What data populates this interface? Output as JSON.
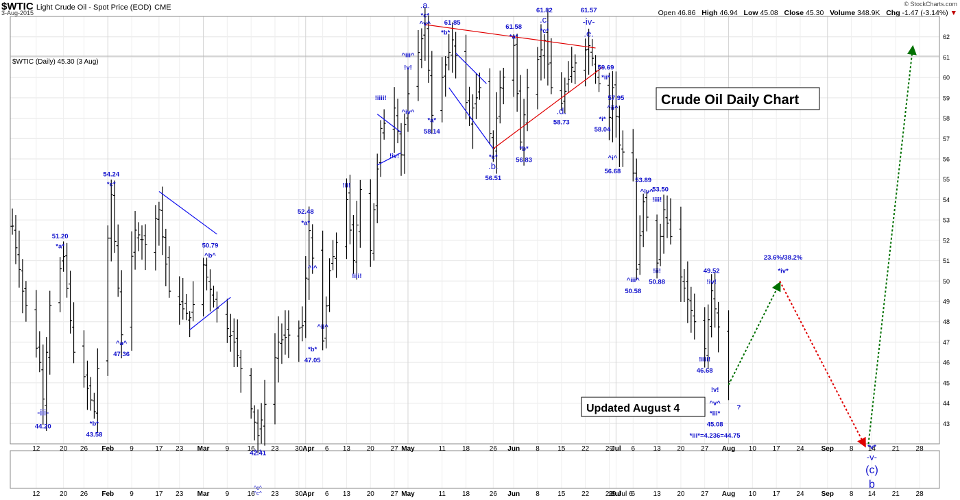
{
  "header": {
    "symbol": "$WTIC",
    "name": "Light Crude Oil - Spot Price (EOD)",
    "exchange": "CME",
    "date": "3-Aug-2015",
    "brand": "© StockCharts.com",
    "open_label": "Open",
    "open": "46.86",
    "high_label": "High",
    "high": "46.94",
    "low_label": "Low",
    "low": "45.08",
    "close_label": "Close",
    "close": "45.30",
    "volume_label": "Volume",
    "volume": "348.9K",
    "chg_label": "Chg",
    "chg": "-1.47 (-3.14%)",
    "chg_arrow": "▼"
  },
  "panel_legend": "$WTIC (Daily) 45.30 (3 Aug)",
  "colors": {
    "wave_label": "#1010cc",
    "bull_arrow": "#007000",
    "bear_arrow": "#e00000",
    "resistance": "#e00000",
    "channel": "#1010ee"
  },
  "chart_data": {
    "type": "ohlc",
    "title": "Crude Oil Daily Chart",
    "subtitle": "Updated August 4",
    "ylim": [
      42,
      63
    ],
    "y_ticks": [
      43,
      44,
      45,
      46,
      47,
      48,
      49,
      50,
      51,
      52,
      53,
      54,
      55,
      56,
      57,
      58,
      59,
      60,
      61,
      62
    ],
    "x_ticks": [
      "12",
      "20",
      "26",
      "Feb",
      "9",
      "17",
      "23",
      "Mar",
      "9",
      "16",
      "23",
      "30",
      "Apr",
      "6",
      "13",
      "20",
      "27",
      "May",
      "11",
      "18",
      "26",
      "Jun",
      "8",
      "15",
      "22",
      "29",
      "Jul",
      "6",
      "13",
      "20",
      "27",
      "Aug",
      "10",
      "17",
      "24",
      "Sep",
      "8",
      "14",
      "21",
      "28"
    ],
    "price_pivots": [
      {
        "date": "2015-01-05",
        "price": 52.7
      },
      {
        "date": "2015-01-08",
        "price": 49.5
      },
      {
        "date": "2015-01-13",
        "price": 46.0
      },
      {
        "date": "2015-01-14",
        "price": 44.2
      },
      {
        "date": "2015-01-16",
        "price": 48.8
      },
      {
        "date": "2015-01-20",
        "price": 51.2
      },
      {
        "date": "2015-01-23",
        "price": 46.5
      },
      {
        "date": "2015-01-26",
        "price": 45.3
      },
      {
        "date": "2015-01-29",
        "price": 43.58
      },
      {
        "date": "2015-02-03",
        "price": 54.24
      },
      {
        "date": "2015-02-06",
        "price": 47.36
      },
      {
        "date": "2015-02-10",
        "price": 52.5
      },
      {
        "date": "2015-02-13",
        "price": 51.8
      },
      {
        "date": "2015-02-17",
        "price": 53.5
      },
      {
        "date": "2015-02-20",
        "price": 49.5
      },
      {
        "date": "2015-02-26",
        "price": 48.2
      },
      {
        "date": "2015-03-02",
        "price": 50.79
      },
      {
        "date": "2015-03-05",
        "price": 49.0
      },
      {
        "date": "2015-03-11",
        "price": 47.0
      },
      {
        "date": "2015-03-18",
        "price": 42.41
      },
      {
        "date": "2015-03-24",
        "price": 47.0
      },
      {
        "date": "2015-03-31",
        "price": 47.8
      },
      {
        "date": "2015-04-02",
        "price": 52.48
      },
      {
        "date": "2015-04-06",
        "price": 47.05
      },
      {
        "date": "2015-04-08",
        "price": 50.5
      },
      {
        "date": "2015-04-13",
        "price": 54.0
      },
      {
        "date": "2015-04-15",
        "price": 51.0
      },
      {
        "date": "2015-04-17",
        "price": 54.5
      },
      {
        "date": "2015-04-20",
        "price": 51.5
      },
      {
        "date": "2015-04-23",
        "price": 57.5
      },
      {
        "date": "2015-04-27",
        "price": 58.5
      },
      {
        "date": "2015-04-29",
        "price": 56.2
      },
      {
        "date": "2015-05-01",
        "price": 59.2
      },
      {
        "date": "2015-05-06",
        "price": 62.58
      },
      {
        "date": "2015-05-08",
        "price": 58.14
      },
      {
        "date": "2015-05-11",
        "price": 60.0
      },
      {
        "date": "2015-05-14",
        "price": 61.85
      },
      {
        "date": "2015-05-19",
        "price": 58.0
      },
      {
        "date": "2015-05-22",
        "price": 59.5
      },
      {
        "date": "2015-05-26",
        "price": 56.51
      },
      {
        "date": "2015-05-28",
        "price": 59.5
      },
      {
        "date": "2015-06-01",
        "price": 61.58
      },
      {
        "date": "2015-06-03",
        "price": 56.83
      },
      {
        "date": "2015-06-05",
        "price": 59.5
      },
      {
        "date": "2015-06-10",
        "price": 61.82
      },
      {
        "date": "2015-06-12",
        "price": 59.5
      },
      {
        "date": "2015-06-15",
        "price": 58.73
      },
      {
        "date": "2015-06-18",
        "price": 60.5
      },
      {
        "date": "2015-06-23",
        "price": 61.57
      },
      {
        "date": "2015-06-26",
        "price": 59.69
      },
      {
        "date": "2015-06-29",
        "price": 58.04
      },
      {
        "date": "2015-06-30",
        "price": 59.5
      },
      {
        "date": "2015-07-02",
        "price": 56.68
      },
      {
        "date": "2015-07-06",
        "price": 55.3
      },
      {
        "date": "2015-07-07",
        "price": 50.58
      },
      {
        "date": "2015-07-09",
        "price": 53.89
      },
      {
        "date": "2015-07-13",
        "price": 50.88
      },
      {
        "date": "2015-07-15",
        "price": 53.5
      },
      {
        "date": "2015-07-20",
        "price": 50.2
      },
      {
        "date": "2015-07-24",
        "price": 48.0
      },
      {
        "date": "2015-07-27",
        "price": 46.68
      },
      {
        "date": "2015-07-29",
        "price": 49.52
      },
      {
        "date": "2015-08-03",
        "price": 45.08
      }
    ],
    "channel_lines": [
      {
        "kind": "channel",
        "from": {
          "date": "2015-02-17",
          "price": 54.4
        },
        "to": {
          "date": "2015-03-06",
          "price": 52.3
        }
      },
      {
        "kind": "channel",
        "from": {
          "date": "2015-02-26",
          "price": 47.6
        },
        "to": {
          "date": "2015-03-10",
          "price": 49.2
        }
      },
      {
        "kind": "channel",
        "from": {
          "date": "2015-04-22",
          "price": 58.2
        },
        "to": {
          "date": "2015-04-29",
          "price": 57.3
        }
      },
      {
        "kind": "channel",
        "from": {
          "date": "2015-04-22",
          "price": 55.7
        },
        "to": {
          "date": "2015-04-29",
          "price": 56.3
        }
      },
      {
        "kind": "channel",
        "from": {
          "date": "2015-05-15",
          "price": 61.2
        },
        "to": {
          "date": "2015-05-24",
          "price": 59.7
        }
      },
      {
        "kind": "channel",
        "from": {
          "date": "2015-05-13",
          "price": 59.5
        },
        "to": {
          "date": "2015-05-26",
          "price": 56.5
        }
      },
      {
        "kind": "resistance",
        "from": {
          "date": "2015-05-06",
          "price": 62.6
        },
        "to": {
          "date": "2015-06-25",
          "price": 61.45
        }
      },
      {
        "kind": "resistance",
        "from": {
          "date": "2015-05-26",
          "price": 56.5
        },
        "to": {
          "date": "2015-06-27",
          "price": 60.5
        }
      }
    ],
    "projections": [
      {
        "kind": "bull",
        "from": {
          "date": "2015-08-03",
          "price": 44.9
        },
        "to": {
          "date": "2015-08-18",
          "price": 49.9
        }
      },
      {
        "kind": "bear",
        "from": {
          "date": "2015-08-18",
          "price": 50.0
        },
        "to": {
          "date": "2015-09-12",
          "price": 41.9
        }
      },
      {
        "kind": "bull",
        "from": {
          "date": "2015-09-13",
          "price": 42.0
        },
        "to": {
          "date": "2015-09-26",
          "price": 61.5
        }
      }
    ],
    "annotations": [
      {
        "text": "51.20",
        "date": "2015-01-19",
        "price": 52.1
      },
      {
        "text": "*a*",
        "date": "2015-01-19",
        "price": 51.6
      },
      {
        "text": "-iii-",
        "date": "2015-01-14",
        "price": 43.4
      },
      {
        "text": "44.20",
        "date": "2015-01-14",
        "price": 42.75
      },
      {
        "text": "*b*",
        "date": "2015-01-29",
        "price": 42.9
      },
      {
        "text": "43.58",
        "date": "2015-01-29",
        "price": 42.35
      },
      {
        "text": "54.24",
        "date": "2015-02-03",
        "price": 55.15
      },
      {
        "text": "*c*",
        "date": "2015-02-03",
        "price": 54.65
      },
      {
        "text": "^a^",
        "date": "2015-02-06",
        "price": 46.85
      },
      {
        "text": "47.36",
        "date": "2015-02-06",
        "price": 46.3
      },
      {
        "text": "50.79",
        "date": "2015-03-04",
        "price": 51.65
      },
      {
        "text": "^b^",
        "date": "2015-03-04",
        "price": 51.15
      },
      {
        "text": "42.41",
        "date": "2015-03-18",
        "price": 41.45
      },
      {
        "text": "52.48",
        "date": "2015-04-01",
        "price": 53.3
      },
      {
        "text": "*a*",
        "date": "2015-04-01",
        "price": 52.75
      },
      {
        "text": "^i^",
        "date": "2015-04-03",
        "price": 50.55
      },
      {
        "text": "^ii^",
        "date": "2015-04-06",
        "price": 47.65
      },
      {
        "text": "*b*",
        "date": "2015-04-03",
        "price": 46.55
      },
      {
        "text": "47.05",
        "date": "2015-04-03",
        "price": 46.0
      },
      {
        "text": "!ii!",
        "date": "2015-04-13",
        "price": 54.6
      },
      {
        "text": "!iii!",
        "date": "2015-04-16",
        "price": 50.15
      },
      {
        "text": "!iiii!",
        "date": "2015-04-23",
        "price": 58.9
      },
      {
        "text": "!iv!",
        "date": "2015-04-27",
        "price": 56.05
      },
      {
        "text": "^iii^",
        "date": "2015-05-01",
        "price": 61.0
      },
      {
        "text": "!v!",
        "date": "2015-05-01",
        "price": 60.4
      },
      {
        "text": "^iv^",
        "date": "2015-05-01",
        "price": 58.2
      },
      {
        "text": "62.58",
        "date": "2015-05-06",
        "price": 63.9
      },
      {
        "text": ".a.",
        "date": "2015-05-06",
        "price": 63.4
      },
      {
        "text": "*c*",
        "date": "2015-05-06",
        "price": 62.95
      },
      {
        "text": "^v^",
        "date": "2015-05-06",
        "price": 62.55
      },
      {
        "text": "61.85",
        "date": "2015-05-14",
        "price": 62.6
      },
      {
        "text": "*b*",
        "date": "2015-05-12",
        "price": 62.1
      },
      {
        "text": "*a*",
        "date": "2015-05-08",
        "price": 57.8
      },
      {
        "text": "58.14",
        "date": "2015-05-08",
        "price": 57.25
      },
      {
        "text": "*c*",
        "date": "2015-05-26",
        "price": 56.0
      },
      {
        "text": ".b.",
        "date": "2015-05-26",
        "price": 55.5
      },
      {
        "text": "56.51",
        "date": "2015-05-26",
        "price": 54.95
      },
      {
        "text": "61.58",
        "date": "2015-06-01",
        "price": 62.4
      },
      {
        "text": "*a*",
        "date": "2015-06-01",
        "price": 61.9
      },
      {
        "text": "*b*",
        "date": "2015-06-04",
        "price": 56.4
      },
      {
        "text": "56.83",
        "date": "2015-06-04",
        "price": 55.85
      },
      {
        "text": "61.82",
        "date": "2015-06-10",
        "price": 63.2
      },
      {
        "text": ".c.",
        "date": "2015-06-10",
        "price": 62.7
      },
      {
        "text": "*c*",
        "date": "2015-06-10",
        "price": 62.2
      },
      {
        "text": ".d.",
        "date": "2015-06-15",
        "price": 58.2
      },
      {
        "text": "58.73",
        "date": "2015-06-15",
        "price": 57.7
      },
      {
        "text": "61.57",
        "date": "2015-06-23",
        "price": 63.2
      },
      {
        "text": "-iv-",
        "date": "2015-06-23",
        "price": 62.6
      },
      {
        "text": ".e.",
        "date": "2015-06-23",
        "price": 62.0
      },
      {
        "text": "59.69",
        "date": "2015-06-28",
        "price": 60.4
      },
      {
        "text": "*ii*",
        "date": "2015-06-28",
        "price": 59.9
      },
      {
        "text": "57.95",
        "date": "2015-07-01",
        "price": 58.9
      },
      {
        "text": "^ii^",
        "date": "2015-06-30",
        "price": 58.4
      },
      {
        "text": "*i*",
        "date": "2015-06-27",
        "price": 57.85
      },
      {
        "text": "58.04",
        "date": "2015-06-27",
        "price": 57.35
      },
      {
        "text": "^i^",
        "date": "2015-06-30",
        "price": 55.95
      },
      {
        "text": "56.68",
        "date": "2015-06-30",
        "price": 55.3
      },
      {
        "text": "53.89",
        "date": "2015-07-09",
        "price": 54.85
      },
      {
        "text": "^iv^",
        "date": "2015-07-10",
        "price": 54.3
      },
      {
        "text": "53.50",
        "date": "2015-07-14",
        "price": 54.4
      },
      {
        "text": "!iii!",
        "date": "2015-07-13",
        "price": 53.9
      },
      {
        "text": "^iii^",
        "date": "2015-07-06",
        "price": 49.95
      },
      {
        "text": "50.58",
        "date": "2015-07-06",
        "price": 49.4
      },
      {
        "text": "!ii!",
        "date": "2015-07-13",
        "price": 50.4
      },
      {
        "text": "50.88",
        "date": "2015-07-13",
        "price": 49.85
      },
      {
        "text": "49.52",
        "date": "2015-07-29",
        "price": 50.4
      },
      {
        "text": "!iv!",
        "date": "2015-07-29",
        "price": 49.85
      },
      {
        "text": "!iiii!",
        "date": "2015-07-27",
        "price": 46.05
      },
      {
        "text": "46.68",
        "date": "2015-07-27",
        "price": 45.5
      },
      {
        "text": "!v!",
        "date": "2015-07-30",
        "price": 44.55
      },
      {
        "text": "^v^",
        "date": "2015-07-30",
        "price": 43.9
      },
      {
        "text": "*iii*",
        "date": "2015-07-30",
        "price": 43.4
      },
      {
        "text": "45.08",
        "date": "2015-07-30",
        "price": 42.85
      },
      {
        "text": "*iii*=4.236=44.75",
        "date": "2015-07-30",
        "price": 42.3
      },
      {
        "text": "?",
        "date": "2015-08-06",
        "price": 43.7
      },
      {
        "text": "23.6%/38.2%",
        "date": "2015-08-19",
        "price": 51.05
      },
      {
        "text": "*iv*",
        "date": "2015-08-19",
        "price": 50.4
      },
      {
        "text": "*v*",
        "date": "2015-09-14",
        "price": 41.75
      },
      {
        "text": "-v-",
        "date": "2015-09-14",
        "price": 41.2
      },
      {
        "text": "(c)",
        "date": "2015-09-14",
        "price": 40.55
      },
      {
        "text": "b",
        "date": "2015-09-14",
        "price": 39.85
      }
    ],
    "overlay_labels": [
      "*c*",
      "^c^",
      "^c^",
      "29 Jul 6"
    ]
  }
}
